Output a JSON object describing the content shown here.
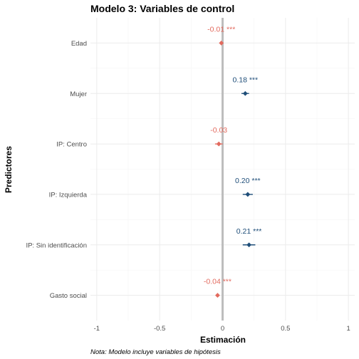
{
  "chart_data": {
    "type": "scatter",
    "title": "Modelo 3: Variables de control",
    "xlabel": "Estimación",
    "ylabel": "Predictores",
    "caption": "Nota: Modelo incluye variables de hipótesis",
    "xlim": [
      -1.05,
      1.05
    ],
    "xticks": [
      -1,
      -0.5,
      0,
      0.5,
      1
    ],
    "xtick_labels": [
      "-1",
      "-0.5",
      "0",
      "0.5",
      "1"
    ],
    "grid": true,
    "reference_line": 0,
    "colors": {
      "positive": "#1f4e79",
      "negative": "#e26a5e",
      "zero_line": "#bdbdbd"
    },
    "points": [
      {
        "predictor": "Edad",
        "estimate": -0.01,
        "ci_low": -0.015,
        "ci_high": -0.005,
        "label": "-0.01 ***",
        "sign": "negative"
      },
      {
        "predictor": "Mujer",
        "estimate": 0.18,
        "ci_low": 0.15,
        "ci_high": 0.21,
        "label": "0.18 ***",
        "sign": "positive"
      },
      {
        "predictor": "IP: Centro",
        "estimate": -0.03,
        "ci_low": -0.06,
        "ci_high": 0.0,
        "label": "-0.03",
        "sign": "negative"
      },
      {
        "predictor": "IP: Izquierda",
        "estimate": 0.2,
        "ci_low": 0.16,
        "ci_high": 0.24,
        "label": "0.20 ***",
        "sign": "positive"
      },
      {
        "predictor": "IP: Sin identificación",
        "estimate": 0.21,
        "ci_low": 0.16,
        "ci_high": 0.26,
        "label": "0.21 ***",
        "sign": "positive"
      },
      {
        "predictor": "Gasto social",
        "estimate": -0.04,
        "ci_low": -0.045,
        "ci_high": -0.035,
        "label": "-0.04 ***",
        "sign": "negative"
      }
    ]
  }
}
